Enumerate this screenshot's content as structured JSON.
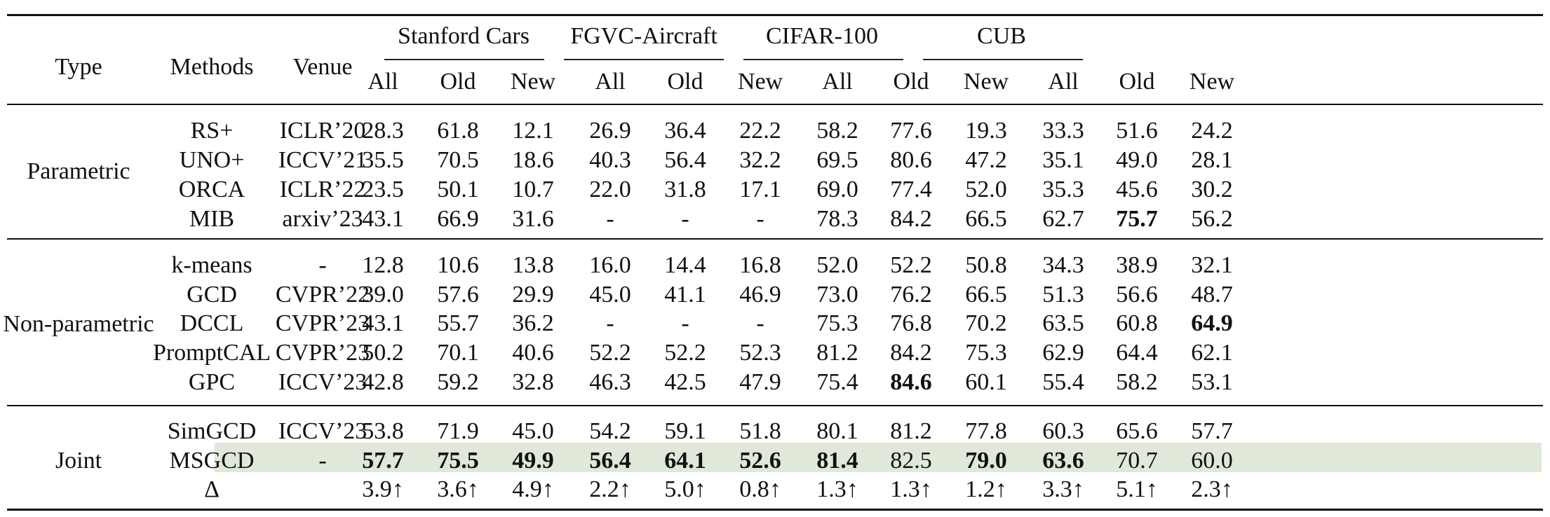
{
  "headers": {
    "type": "Type",
    "methods": "Methods",
    "venue": "Venue",
    "datasets": [
      "Stanford Cars",
      "FGVC-Aircraft",
      "CIFAR-100",
      "CUB"
    ],
    "sub": [
      "All",
      "Old",
      "New"
    ]
  },
  "groups": [
    {
      "label": "Parametric",
      "rows": [
        {
          "method": "RS+",
          "venue": "ICLR’20",
          "values": [
            "28.3",
            "61.8",
            "12.1",
            "26.9",
            "36.4",
            "22.2",
            "58.2",
            "77.6",
            "19.3",
            "33.3",
            "51.6",
            "24.2"
          ],
          "bold": []
        },
        {
          "method": "UNO+",
          "venue": "ICCV’21",
          "values": [
            "35.5",
            "70.5",
            "18.6",
            "40.3",
            "56.4",
            "32.2",
            "69.5",
            "80.6",
            "47.2",
            "35.1",
            "49.0",
            "28.1"
          ],
          "bold": []
        },
        {
          "method": "ORCA",
          "venue": "ICLR’22",
          "values": [
            "23.5",
            "50.1",
            "10.7",
            "22.0",
            "31.8",
            "17.1",
            "69.0",
            "77.4",
            "52.0",
            "35.3",
            "45.6",
            "30.2"
          ],
          "bold": []
        },
        {
          "method": "MIB",
          "venue": "arxiv’23",
          "values": [
            "43.1",
            "66.9",
            "31.6",
            "-",
            "-",
            "-",
            "78.3",
            "84.2",
            "66.5",
            "62.7",
            "75.7",
            "56.2"
          ],
          "bold": [
            10
          ]
        }
      ]
    },
    {
      "label": "Non-parametric",
      "rows": [
        {
          "method": "k-means",
          "venue": "-",
          "values": [
            "12.8",
            "10.6",
            "13.8",
            "16.0",
            "14.4",
            "16.8",
            "52.0",
            "52.2",
            "50.8",
            "34.3",
            "38.9",
            "32.1"
          ],
          "bold": []
        },
        {
          "method": "GCD",
          "venue": "CVPR’22",
          "values": [
            "39.0",
            "57.6",
            "29.9",
            "45.0",
            "41.1",
            "46.9",
            "73.0",
            "76.2",
            "66.5",
            "51.3",
            "56.6",
            "48.7"
          ],
          "bold": []
        },
        {
          "method": "DCCL",
          "venue": "CVPR’23",
          "values": [
            "43.1",
            "55.7",
            "36.2",
            "-",
            "-",
            "-",
            "75.3",
            "76.8",
            "70.2",
            "63.5",
            "60.8",
            "64.9"
          ],
          "bold": [
            11
          ]
        },
        {
          "method": "PromptCAL",
          "venue": "CVPR’23",
          "values": [
            "50.2",
            "70.1",
            "40.6",
            "52.2",
            "52.2",
            "52.3",
            "81.2",
            "84.2",
            "75.3",
            "62.9",
            "64.4",
            "62.1"
          ],
          "bold": []
        },
        {
          "method": "GPC",
          "venue": "ICCV’23",
          "values": [
            "42.8",
            "59.2",
            "32.8",
            "46.3",
            "42.5",
            "47.9",
            "75.4",
            "84.6",
            "60.1",
            "55.4",
            "58.2",
            "53.1"
          ],
          "bold": [
            7
          ]
        }
      ]
    },
    {
      "label": "Joint",
      "rows": [
        {
          "method": "SimGCD",
          "venue": "ICCV’23",
          "values": [
            "53.8",
            "71.9",
            "45.0",
            "54.2",
            "59.1",
            "51.8",
            "80.1",
            "81.2",
            "77.8",
            "60.3",
            "65.6",
            "57.7"
          ],
          "bold": []
        },
        {
          "method": "MSGCD",
          "venue": "-",
          "values": [
            "57.7",
            "75.5",
            "49.9",
            "56.4",
            "64.1",
            "52.6",
            "81.4",
            "82.5",
            "79.0",
            "63.6",
            "70.7",
            "60.0"
          ],
          "bold": [
            0,
            1,
            2,
            3,
            4,
            5,
            6,
            8,
            9
          ],
          "highlight": true
        },
        {
          "method": "Δ",
          "venue": "",
          "values": [
            "3.9↑",
            "3.6↑",
            "4.9↑",
            "2.2↑",
            "5.0↑",
            "0.8↑",
            "1.3↑",
            "1.3↑",
            "1.2↑",
            "3.3↑",
            "5.1↑",
            "2.3↑"
          ],
          "bold": []
        }
      ]
    }
  ],
  "colors": {
    "highlight": "#dfe8d9",
    "text": "#111111"
  }
}
